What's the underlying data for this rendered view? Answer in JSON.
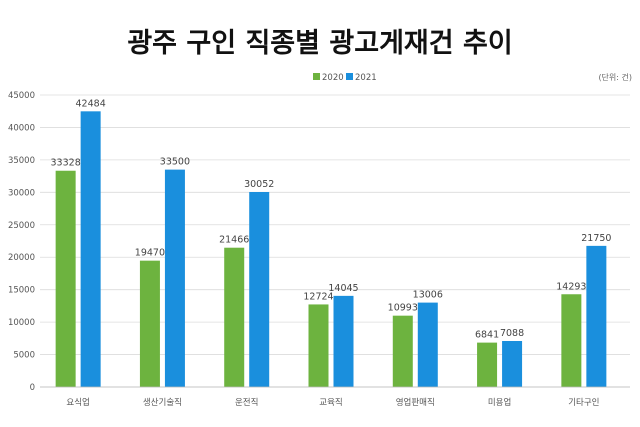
{
  "chart_data": {
    "type": "bar",
    "title": "광주 구인 직종별 광고게재건 추이",
    "unit_label": "(단위: 건)",
    "categories": [
      "요식업",
      "생산기술직",
      "운전직",
      "교육직",
      "영업판매직",
      "미용업",
      "기타구인"
    ],
    "series": [
      {
        "name": "2020",
        "color": "#6db33f",
        "values": [
          33328,
          19470,
          21466,
          12724,
          10993,
          6841,
          14293
        ]
      },
      {
        "name": "2021",
        "color": "#1a8fdd",
        "values": [
          42484,
          33500,
          30052,
          14045,
          13006,
          7088,
          21750
        ]
      }
    ],
    "ylim": [
      0,
      45000
    ],
    "yticks": [
      "0",
      "5000",
      "10000",
      "15000",
      "20000",
      "25000",
      "30000",
      "35000",
      "40000",
      "45000"
    ],
    "grid": true,
    "legend_position": "top-center",
    "data_labels": true
  }
}
